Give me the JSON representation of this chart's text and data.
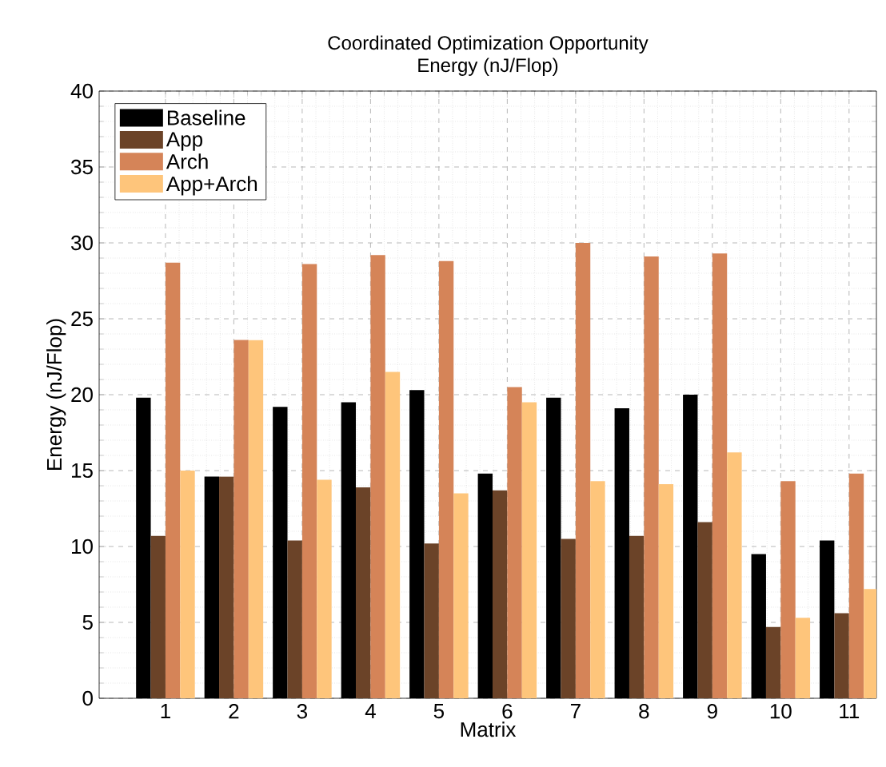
{
  "chart_data": {
    "type": "bar",
    "title": "Coordinated Optimization Opportunity",
    "subtitle": "Energy (nJ/Flop)",
    "xlabel": "Matrix",
    "ylabel": "Energy (nJ/Flop)",
    "categories": [
      "1",
      "2",
      "3",
      "4",
      "5",
      "6",
      "7",
      "8",
      "9",
      "10",
      "11"
    ],
    "series": [
      {
        "name": "Baseline",
        "color": "#000000",
        "values": [
          19.8,
          14.6,
          19.2,
          19.5,
          20.3,
          14.8,
          19.8,
          19.1,
          20.0,
          9.5,
          10.4
        ]
      },
      {
        "name": "App",
        "color": "#6b4328",
        "values": [
          10.7,
          14.6,
          10.4,
          13.9,
          10.2,
          13.7,
          10.5,
          10.7,
          11.6,
          4.7,
          5.6
        ]
      },
      {
        "name": "Arch",
        "color": "#d58458",
        "values": [
          28.7,
          23.6,
          28.6,
          29.2,
          28.8,
          20.5,
          30.0,
          29.1,
          29.3,
          14.3,
          14.8
        ]
      },
      {
        "name": "App+Arch",
        "color": "#fec57b",
        "values": [
          15.0,
          23.6,
          14.4,
          21.5,
          13.5,
          19.5,
          14.3,
          14.1,
          16.2,
          5.3,
          7.2
        ]
      }
    ],
    "ylim": [
      0,
      40
    ],
    "yticks": [
      0,
      5,
      10,
      15,
      20,
      25,
      30,
      35,
      40
    ],
    "grid": true,
    "legend": "top left"
  }
}
